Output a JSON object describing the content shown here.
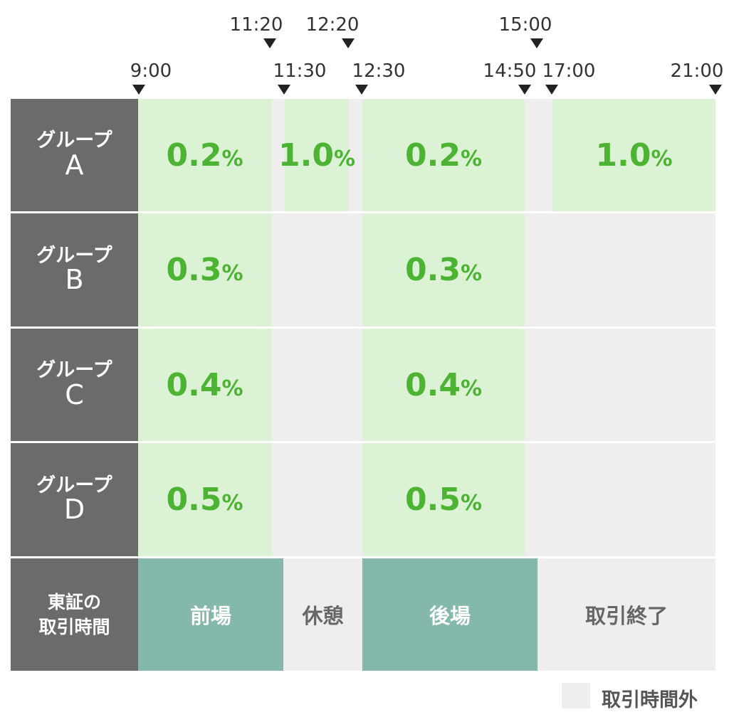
{
  "times": {
    "t0900": "9:00",
    "t1120": "11:20",
    "t1130": "11:30",
    "t1220": "12:20",
    "t1230": "12:30",
    "t1450": "14:50",
    "t1500": "15:00",
    "t1700": "17:00",
    "t2100": "21:00"
  },
  "groups": [
    {
      "label": "グループ",
      "letter": "A"
    },
    {
      "label": "グループ",
      "letter": "B"
    },
    {
      "label": "グループ",
      "letter": "C"
    },
    {
      "label": "グループ",
      "letter": "D"
    }
  ],
  "rates": {
    "a_morning": "0.2",
    "a_lunch": "1.0",
    "a_afternoon": "0.2",
    "a_evening": "1.0",
    "b_morning": "0.3",
    "b_afternoon": "0.3",
    "c_morning": "0.4",
    "c_afternoon": "0.4",
    "d_morning": "0.5",
    "d_afternoon": "0.5"
  },
  "percent": "%",
  "tse": {
    "label_line1": "東証の",
    "label_line2": "取引時間",
    "morning": "前場",
    "break": "休憩",
    "afternoon": "後場",
    "closed": "取引終了"
  },
  "legend": {
    "outside_hours": "取引時間外"
  },
  "colors": {
    "label_bg": "#6b6b6b",
    "rate_cell_bg": "#dbf2d5",
    "rate_text": "#4cb432",
    "outside_hours_bg": "#eeeeee",
    "session_bg": "#84b8aa"
  }
}
